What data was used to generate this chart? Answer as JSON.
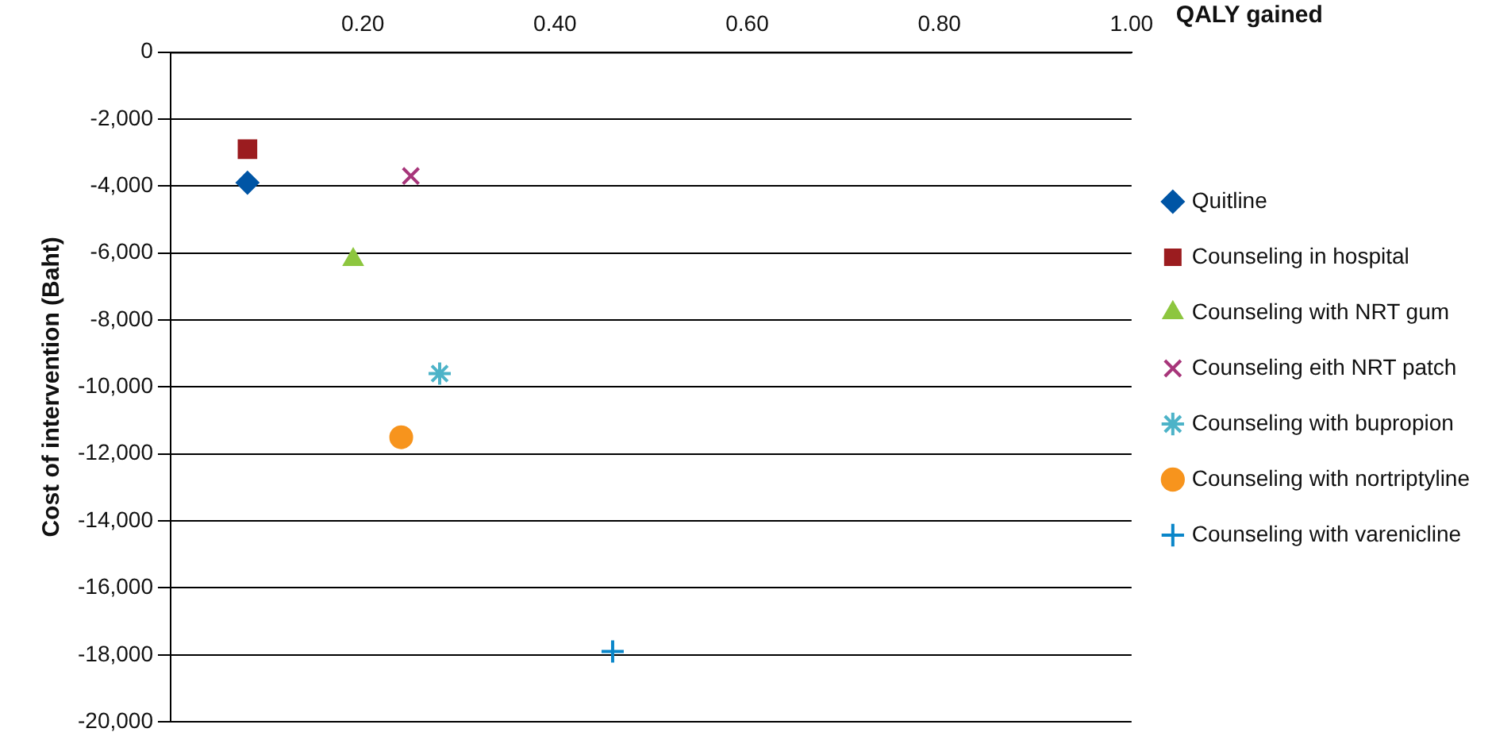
{
  "chart_data": {
    "type": "scatter",
    "xlabel": "QALY gained",
    "ylabel": "Cost of intervention (Baht)",
    "xlim": [
      0,
      1
    ],
    "xticks": [
      {
        "value": 0,
        "label": null
      },
      {
        "value": 0.2,
        "label": "0.20"
      },
      {
        "value": 0.4,
        "label": "0.40"
      },
      {
        "value": 0.6,
        "label": "0.60"
      },
      {
        "value": 0.8,
        "label": "0.80"
      },
      {
        "value": 1,
        "label": "1.00"
      }
    ],
    "ylim": [
      -20000,
      0
    ],
    "yticks": [
      {
        "value": -20000,
        "label": "-20,000"
      },
      {
        "value": -18000,
        "label": "-18,000"
      },
      {
        "value": -16000,
        "label": "-16,000"
      },
      {
        "value": -14000,
        "label": "-14,000"
      },
      {
        "value": -12000,
        "label": "-12,000"
      },
      {
        "value": -10000,
        "label": "-10,000"
      },
      {
        "value": -8000,
        "label": "-8,000"
      },
      {
        "value": -6000,
        "label": "-6,000"
      },
      {
        "value": -4000,
        "label": "-4,000"
      },
      {
        "value": -2000,
        "label": "-2,000"
      },
      0
    ],
    "grid": "y",
    "legend": "right",
    "series": [
      {
        "name": "Quitline",
        "color": "#0055a5",
        "marker": "diamond",
        "x": [
          0.08
        ],
        "values": [
          -3900
        ]
      },
      {
        "name": "Counseling in hospital",
        "color": "#9b1c1f",
        "marker": "square",
        "x": [
          0.08
        ],
        "values": [
          -2900
        ]
      },
      {
        "name": "Counseling with NRT gum",
        "color": "#8dc63f",
        "marker": "triangle",
        "x": [
          0.19
        ],
        "values": [
          -6200
        ]
      },
      {
        "name": "Counseling eith NRT patch",
        "color": "#a7357a",
        "marker": "x",
        "x": [
          0.25
        ],
        "values": [
          -3700
        ]
      },
      {
        "name": "Counseling with bupropion",
        "color": "#4db3c8",
        "marker": "cross",
        "x": [
          0.28
        ],
        "values": [
          -9600
        ]
      },
      {
        "name": "Counseling with nortriptyline",
        "color": "#f7941d",
        "marker": "circle",
        "x": [
          0.24
        ],
        "values": [
          -11500
        ]
      },
      {
        "name": "Counseling with varenicline",
        "color": "#0a86c9",
        "marker": "plus",
        "x": [
          0.46
        ],
        "values": [
          -17900
        ]
      }
    ]
  }
}
